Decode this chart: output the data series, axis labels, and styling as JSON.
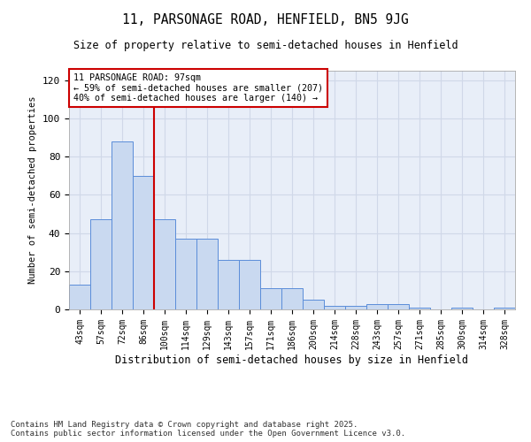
{
  "title1": "11, PARSONAGE ROAD, HENFIELD, BN5 9JG",
  "title2": "Size of property relative to semi-detached houses in Henfield",
  "xlabel": "Distribution of semi-detached houses by size in Henfield",
  "ylabel": "Number of semi-detached properties",
  "categories": [
    "43sqm",
    "57sqm",
    "72sqm",
    "86sqm",
    "100sqm",
    "114sqm",
    "129sqm",
    "143sqm",
    "157sqm",
    "171sqm",
    "186sqm",
    "200sqm",
    "214sqm",
    "228sqm",
    "243sqm",
    "257sqm",
    "271sqm",
    "285sqm",
    "300sqm",
    "314sqm",
    "328sqm"
  ],
  "values": [
    13,
    47,
    88,
    70,
    47,
    37,
    37,
    26,
    26,
    11,
    11,
    5,
    2,
    2,
    3,
    3,
    1,
    0,
    1,
    0,
    1
  ],
  "bar_color": "#c9d9f0",
  "bar_edge_color": "#5b8dd9",
  "vline_color": "#cc0000",
  "annotation_text": "11 PARSONAGE ROAD: 97sqm\n← 59% of semi-detached houses are smaller (207)\n40% of semi-detached houses are larger (140) →",
  "annotation_box_color": "#ffffff",
  "annotation_box_edge": "#cc0000",
  "ylim": [
    0,
    125
  ],
  "yticks": [
    0,
    20,
    40,
    60,
    80,
    100,
    120
  ],
  "grid_color": "#d0d8e8",
  "background_color": "#e8eef8",
  "footer": "Contains HM Land Registry data © Crown copyright and database right 2025.\nContains public sector information licensed under the Open Government Licence v3.0."
}
